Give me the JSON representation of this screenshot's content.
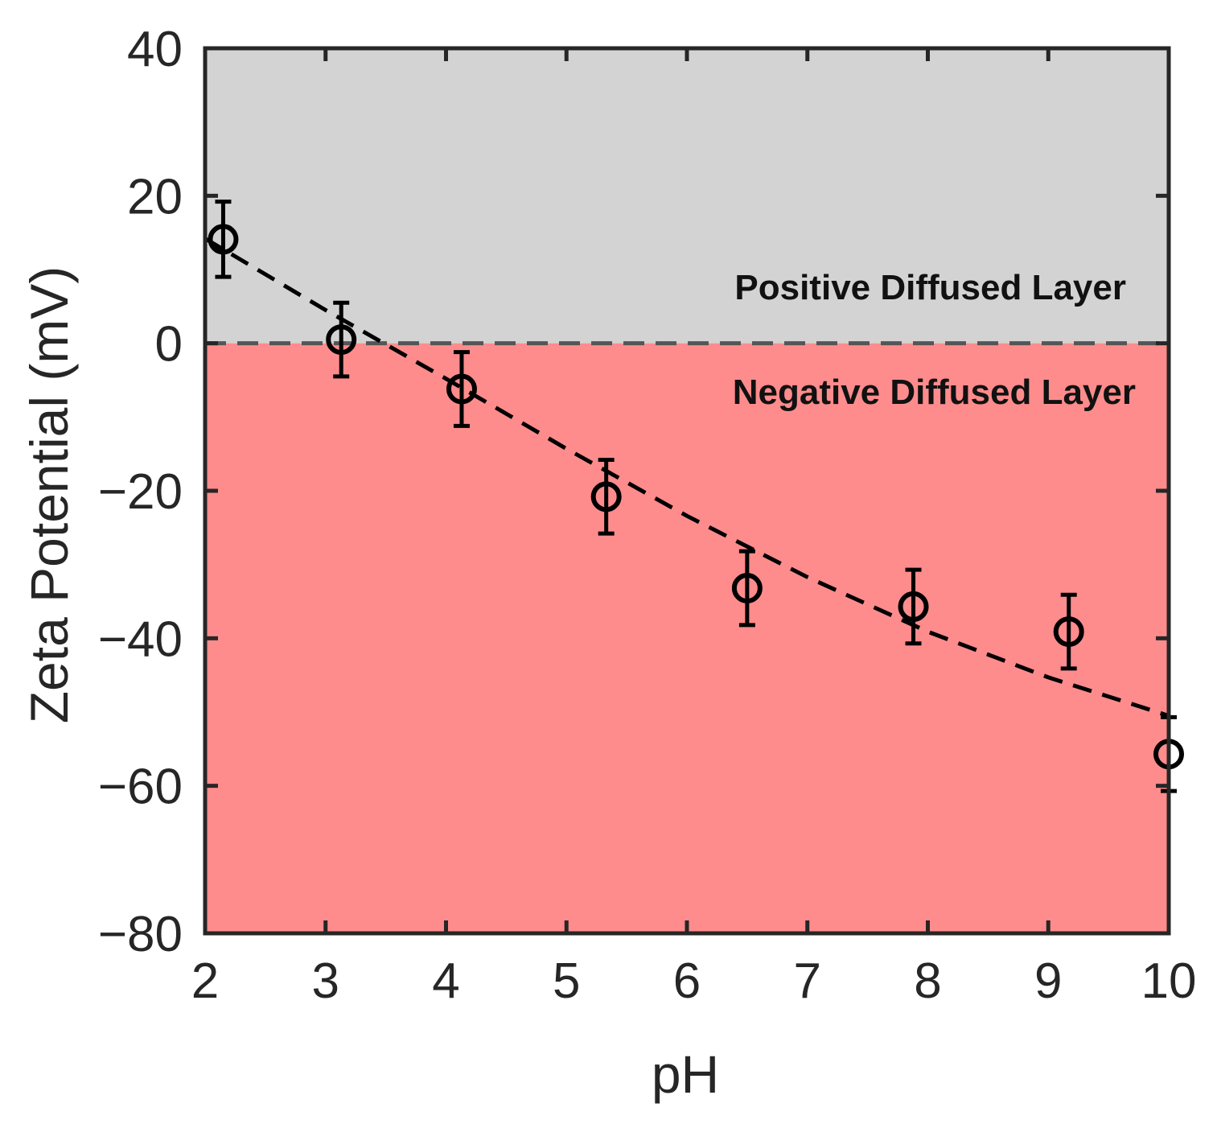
{
  "chart_data": {
    "type": "scatter",
    "title": "",
    "xlabel": "pH",
    "ylabel": "Zeta Potential (mV)",
    "xlim": [
      2,
      10
    ],
    "ylim": [
      -80,
      40
    ],
    "xticks": [
      2,
      3,
      4,
      5,
      6,
      7,
      8,
      9,
      10
    ],
    "yticks": [
      -80,
      -60,
      -40,
      -20,
      0,
      20,
      40
    ],
    "xtick_labels": [
      "2",
      "3",
      "4",
      "5",
      "6",
      "7",
      "8",
      "9",
      "10"
    ],
    "ytick_labels": [
      "−80",
      "−60",
      "−40",
      "−20",
      "0",
      "20",
      "40"
    ],
    "regions": [
      {
        "name": "positive",
        "label": "Positive Diffused Layer",
        "y_range": [
          0,
          40
        ],
        "color": "#d3d3d3"
      },
      {
        "name": "negative",
        "label": "Negative Diffused Layer",
        "y_range": [
          -80,
          0
        ],
        "color": "#ff8c8c"
      }
    ],
    "zero_line": {
      "y": 0,
      "style": "dashed",
      "color": "#555555"
    },
    "series": [
      {
        "name": "measured",
        "marker": "circle-open",
        "color": "#000000",
        "x": [
          2.15,
          3.13,
          4.13,
          5.33,
          6.5,
          7.88,
          9.17,
          10.0
        ],
        "y": [
          14.1,
          0.5,
          -6.2,
          -20.8,
          -33.2,
          -35.7,
          -39.1,
          -55.7
        ],
        "yerr": [
          5.1,
          5.0,
          5.0,
          5.0,
          5.0,
          5.0,
          5.0,
          5.0
        ]
      }
    ],
    "fit": {
      "name": "trend",
      "style": "dashed",
      "color": "#000000",
      "x": [
        2.0,
        3.0,
        4.0,
        5.0,
        6.0,
        7.0,
        8.0,
        9.0,
        10.0
      ],
      "y": [
        14.2,
        4.5,
        -4.8,
        -14.3,
        -23.4,
        -31.7,
        -39.1,
        -45.3,
        -50.5
      ]
    }
  }
}
